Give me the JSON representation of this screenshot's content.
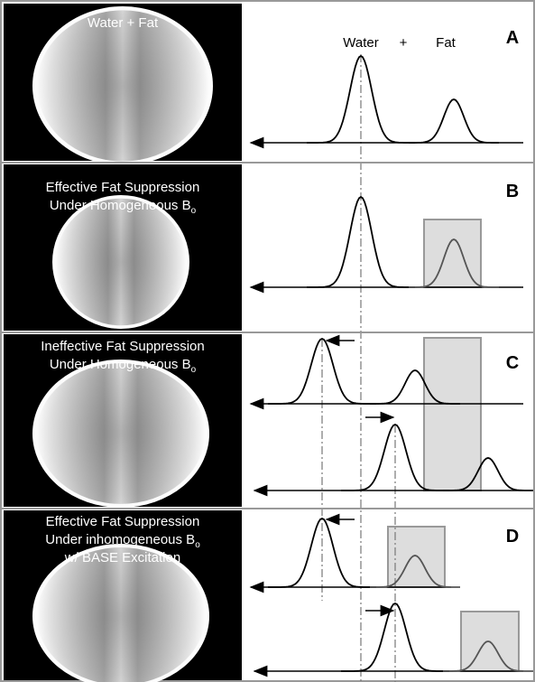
{
  "header": {
    "water": "Water",
    "plus": "+",
    "fat": "Fat"
  },
  "panels": [
    {
      "label": "A",
      "caption": [
        {
          "text": "Water + Fat"
        }
      ]
    },
    {
      "label": "B",
      "caption": [
        {
          "text": "Effective Fat Suppression"
        },
        {
          "text": "Under Homogeneous B",
          "sub": "o"
        }
      ]
    },
    {
      "label": "C",
      "caption": [
        {
          "text": "Ineffective Fat Suppression"
        },
        {
          "text": "Under Homogeneous B",
          "sub": "o"
        }
      ]
    },
    {
      "label": "D",
      "caption": [
        {
          "text": "Effective Fat Suppression"
        },
        {
          "text": "Under inhomogeneous B",
          "sub": "o"
        },
        {
          "text": "w/ BASE Excitation"
        }
      ]
    }
  ]
}
